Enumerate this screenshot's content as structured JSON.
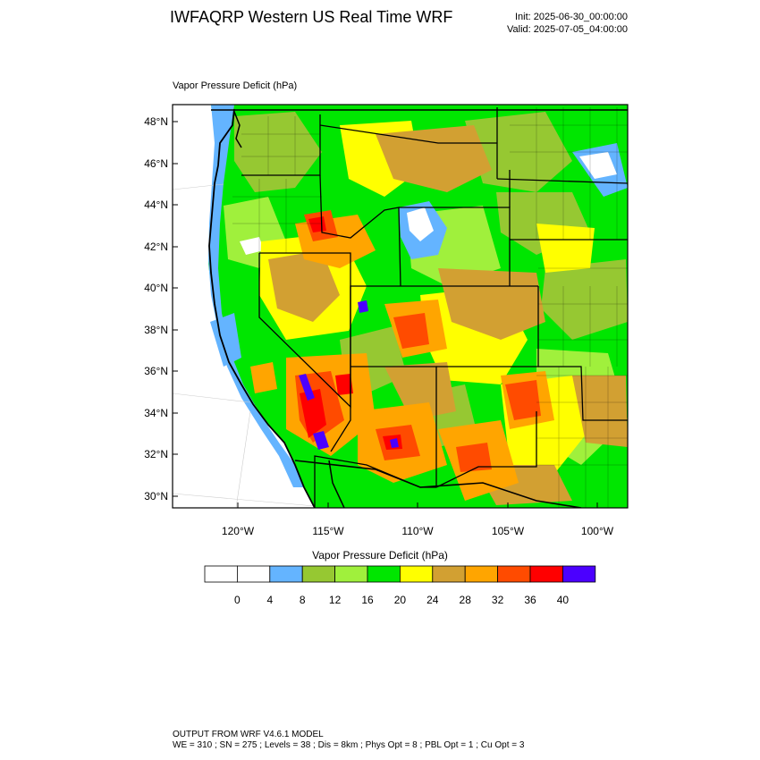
{
  "header": {
    "title": "IWFAQRP Western US Real Time WRF",
    "init": "Init: 2025-06-30_00:00:00",
    "valid": "Valid: 2025-07-05_04:00:00"
  },
  "map": {
    "field_label": "Vapor Pressure Deficit   (hPa)",
    "lat_labels": [
      "48°N",
      "46°N",
      "44°N",
      "42°N",
      "40°N",
      "38°N",
      "36°N",
      "34°N",
      "32°N",
      "30°N"
    ],
    "lon_labels": [
      "120°W",
      "115°W",
      "110°W",
      "105°W",
      "100°W"
    ],
    "extent": {
      "lon": [
        -123.6,
        -98.4
      ],
      "lat": [
        29.5,
        48.8
      ]
    }
  },
  "colorbar": {
    "title": "Vapor Pressure Deficit  (hPa)",
    "tick_labels": [
      "0",
      "4",
      "8",
      "12",
      "16",
      "20",
      "24",
      "28",
      "32",
      "36",
      "40"
    ],
    "colors": [
      "#ffffff",
      "#ffffff",
      "#64b4ff",
      "#96c832",
      "#a0f03c",
      "#00e600",
      "#ffff00",
      "#d2a032",
      "#ffa500",
      "#ff4b00",
      "#ff0000",
      "#4b00ff"
    ]
  },
  "footer": {
    "line1": "OUTPUT FROM WRF V4.6.1 MODEL",
    "line2": "WE = 310 ; SN = 275 ; Levels = 38 ; Dis = 8km ; Phys Opt = 8 ; PBL Opt = 1 ; Cu Opt = 3"
  }
}
